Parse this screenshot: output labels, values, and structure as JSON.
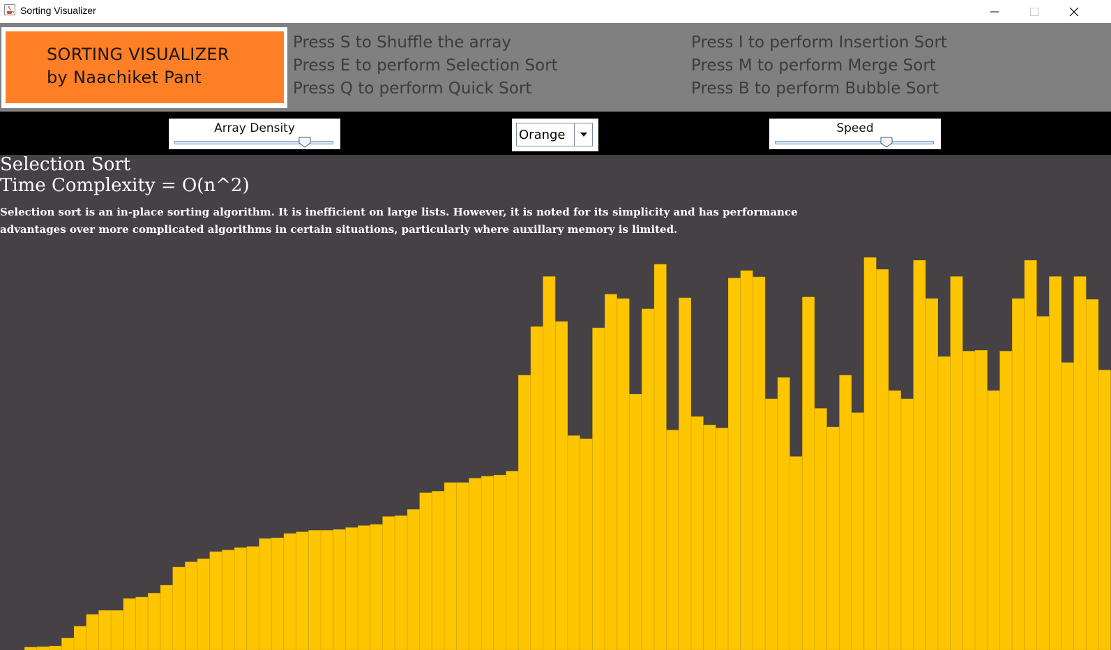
{
  "window": {
    "title": "Sorting Visualizer"
  },
  "header": {
    "logo_line1": "SORTING VISUALIZER",
    "logo_line2": "by Naachiket Pant",
    "instructions_left": [
      "Press S to Shuffle the array",
      "Press E to perform Selection Sort",
      "Press Q to perform Quick Sort"
    ],
    "instructions_right": [
      "Press I to perform Insertion Sort",
      "Press M to perform Merge Sort",
      "Press B to perform Bubble Sort"
    ]
  },
  "controls": {
    "density_label": "Array Density",
    "density_value": 0.82,
    "color_select": "Orange",
    "speed_label": "Speed",
    "speed_value": 0.7
  },
  "algorithm": {
    "name": "Selection Sort",
    "complexity": "Time Complexity = O(n^2)",
    "description": "Selection sort is an in-place sorting algorithm. It is inefficient on large lists. However, it is noted for its simplicity and has performance advantages over more complicated algorithms in certain situations, particularly where auxillary memory is limited."
  },
  "colors": {
    "bar": "#fec601",
    "bar_edge": "#e0ae00",
    "logo_bg": "#fe7f26",
    "header_bg": "#808080",
    "canvas_bg": "#454145"
  },
  "chart_data": {
    "type": "bar",
    "values": [
      0,
      0,
      0.7,
      0.8,
      1.0,
      3.0,
      6.0,
      9.0,
      10.0,
      10.0,
      13.0,
      13.4,
      14.4,
      16.4,
      21.0,
      22.3,
      23.1,
      24.9,
      25.3,
      25.9,
      26.2,
      28.2,
      28.4,
      29.5,
      29.9,
      30.3,
      30.3,
      30.5,
      31.0,
      31.5,
      31.8,
      33.8,
      34.0,
      35.6,
      39.8,
      40.2,
      42.4,
      42.4,
      43.5,
      44.0,
      44.3,
      45.3,
      69.6,
      81.9,
      94.6,
      83.2,
      54.3,
      53.5,
      81.6,
      90.1,
      89.0,
      64.8,
      86.4,
      97.7,
      55.7,
      89.2,
      59.1,
      57.0,
      56.2,
      94.2,
      96.1,
      94.5,
      63.6,
      69.0,
      49.0,
      89.4,
      61.2,
      56.5,
      69.6,
      60.1,
      99.4,
      96.4,
      65.7,
      63.6,
      98.7,
      89.0,
      74.3,
      94.6,
      75.7,
      75.9,
      65.7,
      75.7,
      89.0,
      98.7,
      84.5,
      94.6,
      72.8,
      94.6,
      88.8,
      70.9
    ]
  }
}
